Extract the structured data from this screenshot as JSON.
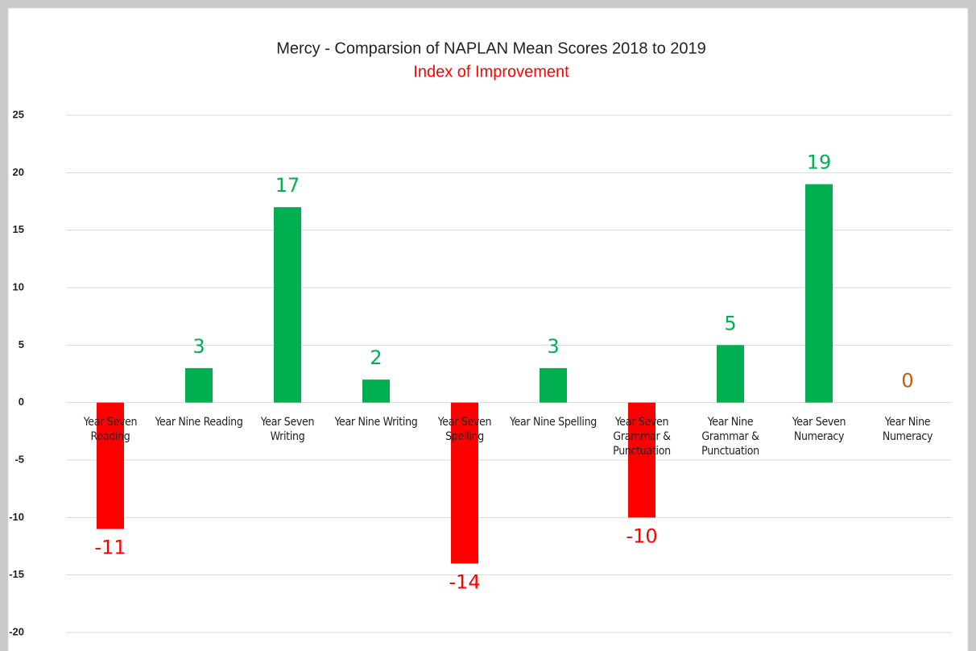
{
  "chart_data": {
    "type": "bar",
    "title": "Mercy  - Comparsion of NAPLAN Mean Scores 2018 to 2019",
    "subtitle": "Index of Improvement",
    "categories": [
      "Year Seven Reading",
      "Year Nine Reading",
      "Year Seven Writing",
      "Year Nine Writing",
      "Year Seven Spelling",
      "Year Nine Spelling",
      "Year Seven Grammar & Punctuation",
      "Year Nine Grammar & Punctuation",
      "Year Seven Numeracy",
      "Year Nine Numeracy"
    ],
    "values": [
      -11,
      3,
      17,
      2,
      -14,
      3,
      -10,
      5,
      19,
      0
    ],
    "colors": [
      "#ff0000",
      "#00b050",
      "#00b050",
      "#00b050",
      "#ff0000",
      "#00b050",
      "#ff0000",
      "#00b050",
      "#00b050",
      "#00b050"
    ],
    "label_colors": [
      "#ff0000",
      "#00b050",
      "#00b050",
      "#00b050",
      "#ff0000",
      "#00b050",
      "#ff0000",
      "#00b050",
      "#00b050",
      "#c55a11"
    ],
    "ylim": [
      -20,
      25
    ],
    "yticks": [
      -20,
      -15,
      -10,
      -5,
      0,
      5,
      10,
      15,
      20,
      25
    ],
    "grid": true
  }
}
